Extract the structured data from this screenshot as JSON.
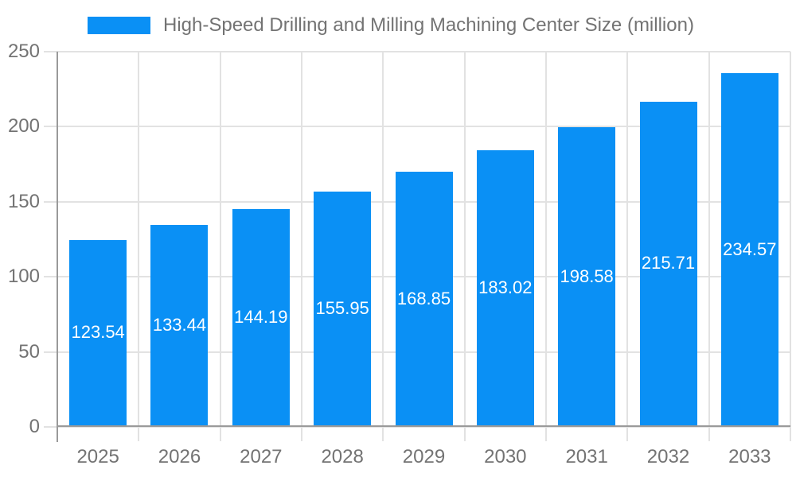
{
  "chart_data": {
    "type": "bar",
    "title": "High-Speed Drilling and Milling Machining Center Size (million)",
    "categories": [
      "2025",
      "2026",
      "2027",
      "2028",
      "2029",
      "2030",
      "2031",
      "2032",
      "2033"
    ],
    "values": [
      123.54,
      133.44,
      144.19,
      155.95,
      168.85,
      183.02,
      198.58,
      215.71,
      234.57
    ],
    "value_labels": [
      "123.54",
      "133.44",
      "144.19",
      "155.95",
      "168.85",
      "183.02",
      "198.58",
      "215.71",
      "234.57"
    ],
    "xlabel": "",
    "ylabel": "",
    "ylim": [
      0,
      250
    ],
    "yticks": [
      0,
      50,
      100,
      150,
      200,
      250
    ],
    "grid": true,
    "legend_position": "top",
    "colors": {
      "bar": "#0a90f5",
      "bar_label": "#ffffff",
      "gridline": "#e2e2e2",
      "axis": "#9a9a9a",
      "text": "#737373",
      "background": "#ffffff"
    }
  }
}
